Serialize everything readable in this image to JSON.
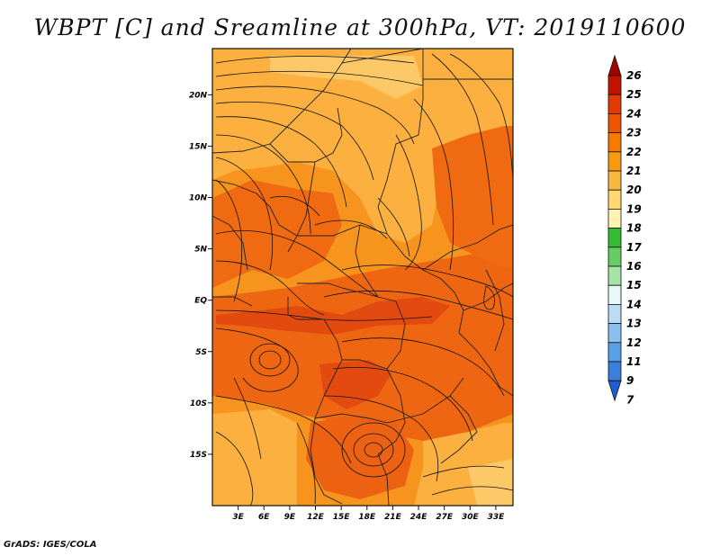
{
  "title": "WBPT [C] and Sreamline at 300hPa, VT: 2019110600",
  "credit": "GrADS: IGES/COLA",
  "map": {
    "lon_range": [
      0,
      35
    ],
    "lat_range": [
      -20,
      24.5
    ],
    "lon_ticks": [
      "3E",
      "6E",
      "9E",
      "12E",
      "15E",
      "18E",
      "21E",
      "24E",
      "27E",
      "30E",
      "33E"
    ],
    "lat_ticks": [
      "20N",
      "15N",
      "10N",
      "5N",
      "EQ",
      "5S",
      "10S",
      "15S"
    ]
  },
  "colorbar": {
    "labels": [
      "26",
      "25",
      "24",
      "23",
      "22",
      "21",
      "20",
      "19",
      "18",
      "17",
      "16",
      "15",
      "14",
      "13",
      "12",
      "11",
      "9",
      "7"
    ],
    "colors": [
      "#a50000",
      "#c41200",
      "#e33a00",
      "#ee5500",
      "#f77a00",
      "#fa9a10",
      "#fbb840",
      "#fdd873",
      "#fef3b0",
      "#33bb33",
      "#66cc66",
      "#a6e3a6",
      "#e6f8f8",
      "#bcdcf5",
      "#8bc0ee",
      "#5aa0e6",
      "#3a7fdc",
      "#1b5fd2"
    ]
  }
}
